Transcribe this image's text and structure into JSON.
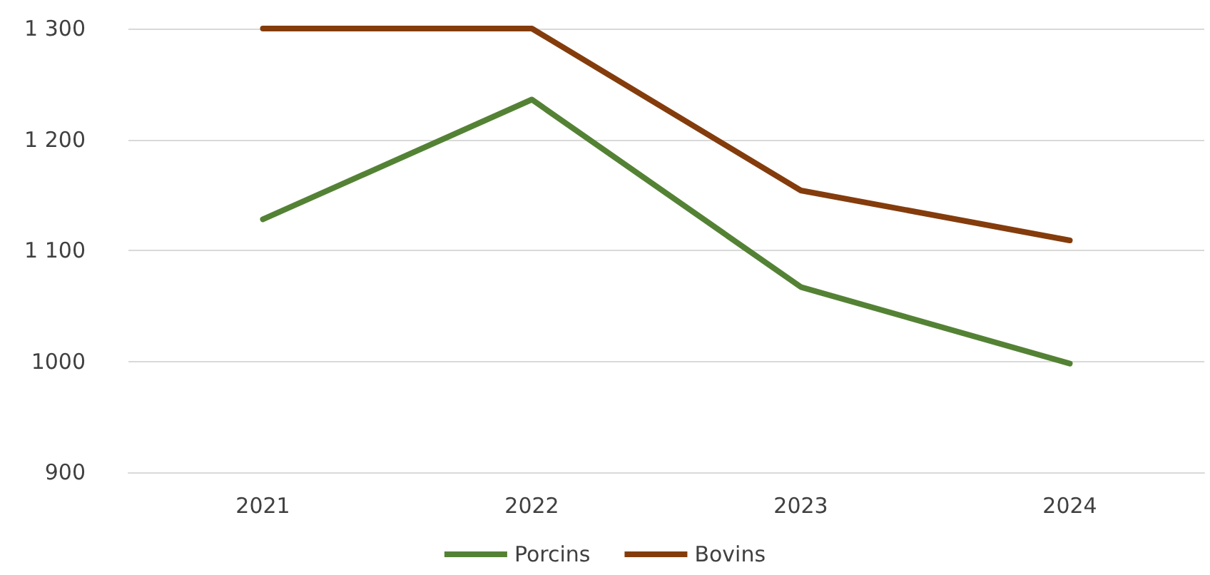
{
  "chart_data": {
    "type": "line",
    "categories": [
      "2021",
      "2022",
      "2023",
      "2024"
    ],
    "series": [
      {
        "name": "Porcins",
        "color": "#548235",
        "values": [
          1128,
          1236,
          1067,
          998
        ]
      },
      {
        "name": "Bovins",
        "color": "#843c0c",
        "values": [
          1300,
          1300,
          1154,
          1109
        ]
      }
    ],
    "ylim": [
      900,
      1300
    ],
    "yticks": [
      900,
      1000,
      {
        "value": 1100,
        "label": "1 100"
      },
      {
        "value": 1200,
        "label": "1 200"
      },
      {
        "value": 1300,
        "label": "1 300"
      }
    ],
    "grid": "y",
    "legend": "bottom",
    "marker": "none",
    "line_style": "solid"
  }
}
